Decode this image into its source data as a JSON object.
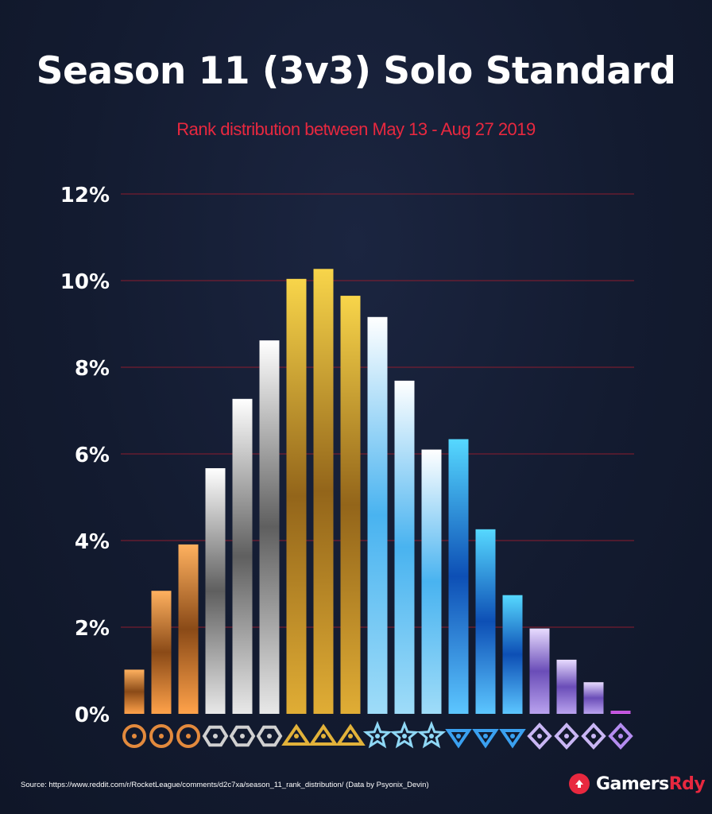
{
  "header": {
    "title": "Season 11 (3v3) Solo Standard",
    "subtitle": "Rank distribution between May 13 - Aug 27 2019"
  },
  "footer": {
    "source": "Source: https://www.reddit.com/r/RocketLeague/comments/d2c7xa/season_11_rank_distribution/ (Data by Psyonix_Devin)",
    "brand_part1": "Gamers",
    "brand_part2": "Rdy"
  },
  "colors": {
    "background": "#131b30",
    "gridline": "#8c1c2e",
    "subtitle": "#e8283f",
    "bronze": "#e38a3d",
    "silver": "#c9c9c9",
    "gold": "#d9a52a",
    "platinum": "#9fdcf5",
    "diamond": "#3aa0f0",
    "champion": "#a78be0",
    "grand_champion": "#d35cf0"
  },
  "chart_data": {
    "type": "bar",
    "ylim": [
      0,
      12
    ],
    "yticks": [
      "0%",
      "2%",
      "4%",
      "6%",
      "8%",
      "10%",
      "12%"
    ],
    "ytick_values": [
      0,
      2,
      4,
      6,
      8,
      10,
      12
    ],
    "grid": true,
    "categories": [
      "Bronze I",
      "Bronze II",
      "Bronze III",
      "Silver I",
      "Silver II",
      "Silver III",
      "Gold I",
      "Gold II",
      "Gold III",
      "Platinum I",
      "Platinum II",
      "Platinum III",
      "Diamond I",
      "Diamond II",
      "Diamond III",
      "Champion I",
      "Champion II",
      "Champion III",
      "Grand Champion"
    ],
    "category_icons": [
      "bronze-1-icon",
      "bronze-2-icon",
      "bronze-3-icon",
      "silver-1-icon",
      "silver-2-icon",
      "silver-3-icon",
      "gold-1-icon",
      "gold-2-icon",
      "gold-3-icon",
      "platinum-1-icon",
      "platinum-2-icon",
      "platinum-3-icon",
      "diamond-1-icon",
      "diamond-2-icon",
      "diamond-3-icon",
      "champion-1-icon",
      "champion-2-icon",
      "champion-3-icon",
      "grand-champion-icon"
    ],
    "values": [
      1.02,
      2.84,
      3.91,
      5.67,
      7.27,
      8.62,
      10.04,
      10.27,
      9.65,
      9.16,
      7.69,
      6.1,
      6.34,
      4.26,
      2.74,
      1.97,
      1.25,
      0.73,
      0.07
    ],
    "tiers": [
      "bronze",
      "bronze",
      "bronze",
      "silver",
      "silver",
      "silver",
      "gold",
      "gold",
      "gold",
      "platinum",
      "platinum",
      "platinum",
      "diamond",
      "diamond",
      "diamond",
      "champion",
      "champion",
      "champion",
      "grand_champion"
    ]
  }
}
